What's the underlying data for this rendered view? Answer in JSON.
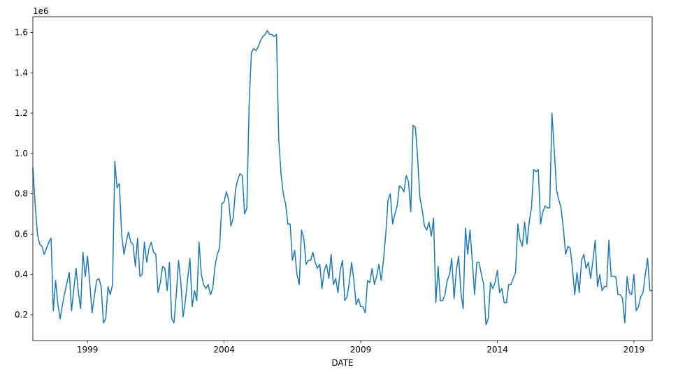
{
  "chart_data": {
    "type": "line",
    "x_label": "DATE",
    "y_offset_label": "1e6",
    "xlim": [
      1997,
      2019.667
    ],
    "ylim": [
      0.072,
      1.678
    ],
    "xticks": [
      1999,
      2004,
      2009,
      2014,
      2019
    ],
    "yticks": [
      0.2,
      0.4,
      0.6,
      0.8,
      {
        "value": 1,
        "label": "1.0"
      },
      1.2,
      1.4,
      1.6
    ],
    "grid": false,
    "series": [
      {
        "color": "#1f77b4",
        "x": [
          1997,
          1997.083,
          1997.167,
          1997.25,
          1997.333,
          1997.417,
          1997.5,
          1997.583,
          1997.667,
          1997.75,
          1997.833,
          1997.917,
          1998,
          1998.083,
          1998.167,
          1998.25,
          1998.333,
          1998.417,
          1998.5,
          1998.583,
          1998.667,
          1998.75,
          1998.833,
          1998.917,
          1999,
          1999.083,
          1999.167,
          1999.25,
          1999.333,
          1999.417,
          1999.5,
          1999.583,
          1999.667,
          1999.75,
          1999.833,
          1999.917,
          2000,
          2000.083,
          2000.167,
          2000.25,
          2000.333,
          2000.417,
          2000.5,
          2000.583,
          2000.667,
          2000.75,
          2000.833,
          2000.917,
          2001,
          2001.083,
          2001.167,
          2001.25,
          2001.333,
          2001.417,
          2001.5,
          2001.583,
          2001.667,
          2001.75,
          2001.833,
          2001.917,
          2002,
          2002.083,
          2002.167,
          2002.25,
          2002.333,
          2002.417,
          2002.5,
          2002.583,
          2002.667,
          2002.75,
          2002.833,
          2002.917,
          2003,
          2003.083,
          2003.167,
          2003.25,
          2003.333,
          2003.417,
          2003.5,
          2003.583,
          2003.667,
          2003.75,
          2003.833,
          2003.917,
          2004,
          2004.083,
          2004.167,
          2004.25,
          2004.333,
          2004.417,
          2004.5,
          2004.583,
          2004.667,
          2004.75,
          2004.833,
          2004.917,
          2005,
          2005.083,
          2005.167,
          2005.25,
          2005.333,
          2005.417,
          2005.5,
          2005.583,
          2005.667,
          2005.75,
          2005.833,
          2005.917,
          2006,
          2006.083,
          2006.167,
          2006.25,
          2006.333,
          2006.417,
          2006.5,
          2006.583,
          2006.667,
          2006.75,
          2006.833,
          2006.917,
          2007,
          2007.083,
          2007.167,
          2007.25,
          2007.333,
          2007.417,
          2007.5,
          2007.583,
          2007.667,
          2007.75,
          2007.833,
          2007.917,
          2008,
          2008.083,
          2008.167,
          2008.25,
          2008.333,
          2008.417,
          2008.5,
          2008.583,
          2008.667,
          2008.75,
          2008.833,
          2008.917,
          2009,
          2009.083,
          2009.167,
          2009.25,
          2009.333,
          2009.417,
          2009.5,
          2009.583,
          2009.667,
          2009.75,
          2009.833,
          2009.917,
          2010,
          2010.083,
          2010.167,
          2010.25,
          2010.333,
          2010.417,
          2010.5,
          2010.583,
          2010.667,
          2010.75,
          2010.833,
          2010.917,
          2011,
          2011.083,
          2011.167,
          2011.25,
          2011.333,
          2011.417,
          2011.5,
          2011.583,
          2011.667,
          2011.75,
          2011.833,
          2011.917,
          2012,
          2012.083,
          2012.167,
          2012.25,
          2012.333,
          2012.417,
          2012.5,
          2012.583,
          2012.667,
          2012.75,
          2012.833,
          2012.917,
          2013,
          2013.083,
          2013.167,
          2013.25,
          2013.333,
          2013.417,
          2013.5,
          2013.583,
          2013.667,
          2013.75,
          2013.833,
          2013.917,
          2014,
          2014.083,
          2014.167,
          2014.25,
          2014.333,
          2014.417,
          2014.5,
          2014.583,
          2014.667,
          2014.75,
          2014.833,
          2014.917,
          2015,
          2015.083,
          2015.167,
          2015.25,
          2015.333,
          2015.417,
          2015.5,
          2015.583,
          2015.667,
          2015.75,
          2015.833,
          2015.917,
          2016,
          2016.083,
          2016.167,
          2016.25,
          2016.333,
          2016.417,
          2016.5,
          2016.583,
          2016.667,
          2016.75,
          2016.833,
          2016.917,
          2017,
          2017.083,
          2017.167,
          2017.25,
          2017.333,
          2017.417,
          2017.5,
          2017.583,
          2017.667,
          2017.75,
          2017.833,
          2017.917,
          2018,
          2018.083,
          2018.167,
          2018.25,
          2018.333,
          2018.417,
          2018.5,
          2018.583,
          2018.667,
          2018.75,
          2018.833,
          2018.917,
          2019,
          2019.083,
          2019.167,
          2019.25,
          2019.333,
          2019.417,
          2019.5,
          2019.583,
          2019.667
        ],
        "values": [
          0.93,
          0.75,
          0.6,
          0.55,
          0.54,
          0.5,
          0.53,
          0.56,
          0.58,
          0.22,
          0.37,
          0.25,
          0.18,
          0.25,
          0.31,
          0.36,
          0.41,
          0.22,
          0.33,
          0.43,
          0.31,
          0.23,
          0.51,
          0.39,
          0.49,
          0.36,
          0.21,
          0.29,
          0.37,
          0.38,
          0.34,
          0.16,
          0.18,
          0.34,
          0.3,
          0.35,
          0.96,
          0.83,
          0.85,
          0.6,
          0.5,
          0.56,
          0.61,
          0.56,
          0.55,
          0.44,
          0.58,
          0.39,
          0.4,
          0.56,
          0.46,
          0.53,
          0.56,
          0.51,
          0.5,
          0.31,
          0.36,
          0.44,
          0.43,
          0.32,
          0.46,
          0.18,
          0.16,
          0.3,
          0.47,
          0.36,
          0.19,
          0.27,
          0.38,
          0.48,
          0.24,
          0.32,
          0.27,
          0.56,
          0.4,
          0.35,
          0.33,
          0.35,
          0.3,
          0.33,
          0.44,
          0.5,
          0.53,
          0.75,
          0.76,
          0.81,
          0.77,
          0.64,
          0.68,
          0.82,
          0.87,
          0.9,
          0.89,
          0.7,
          0.73,
          1.25,
          1.5,
          1.52,
          1.51,
          1.53,
          1.56,
          1.58,
          1.59,
          1.61,
          1.59,
          1.59,
          1.58,
          1.59,
          1.07,
          0.9,
          0.8,
          0.75,
          0.65,
          0.65,
          0.47,
          0.52,
          0.4,
          0.35,
          0.62,
          0.58,
          0.45,
          0.47,
          0.47,
          0.51,
          0.46,
          0.43,
          0.45,
          0.33,
          0.42,
          0.45,
          0.38,
          0.5,
          0.35,
          0.38,
          0.31,
          0.42,
          0.47,
          0.27,
          0.29,
          0.36,
          0.46,
          0.37,
          0.25,
          0.28,
          0.24,
          0.24,
          0.21,
          0.37,
          0.36,
          0.43,
          0.35,
          0.39,
          0.45,
          0.37,
          0.47,
          0.6,
          0.77,
          0.8,
          0.65,
          0.7,
          0.74,
          0.84,
          0.83,
          0.81,
          0.89,
          0.86,
          0.71,
          1.14,
          1.13,
          0.98,
          0.78,
          0.72,
          0.64,
          0.62,
          0.66,
          0.59,
          0.68,
          0.26,
          0.44,
          0.27,
          0.27,
          0.3,
          0.37,
          0.4,
          0.48,
          0.28,
          0.42,
          0.49,
          0.31,
          0.23,
          0.63,
          0.5,
          0.62,
          0.47,
          0.3,
          0.46,
          0.46,
          0.4,
          0.35,
          0.15,
          0.18,
          0.36,
          0.33,
          0.36,
          0.42,
          0.31,
          0.33,
          0.26,
          0.26,
          0.35,
          0.35,
          0.38,
          0.41,
          0.65,
          0.57,
          0.54,
          0.66,
          0.55,
          0.66,
          0.73,
          0.92,
          0.91,
          0.92,
          0.65,
          0.71,
          0.74,
          0.73,
          0.73,
          1.2,
          1.02,
          0.82,
          0.77,
          0.73,
          0.63,
          0.5,
          0.54,
          0.53,
          0.43,
          0.3,
          0.41,
          0.31,
          0.47,
          0.5,
          0.43,
          0.46,
          0.38,
          0.47,
          0.57,
          0.34,
          0.4,
          0.32,
          0.34,
          0.34,
          0.57,
          0.39,
          0.39,
          0.39,
          0.3,
          0.3,
          0.28,
          0.16,
          0.39,
          0.31,
          0.3,
          0.4,
          0.22,
          0.24,
          0.29,
          0.31,
          0.4,
          0.48,
          0.32,
          0.32
        ]
      }
    ]
  }
}
